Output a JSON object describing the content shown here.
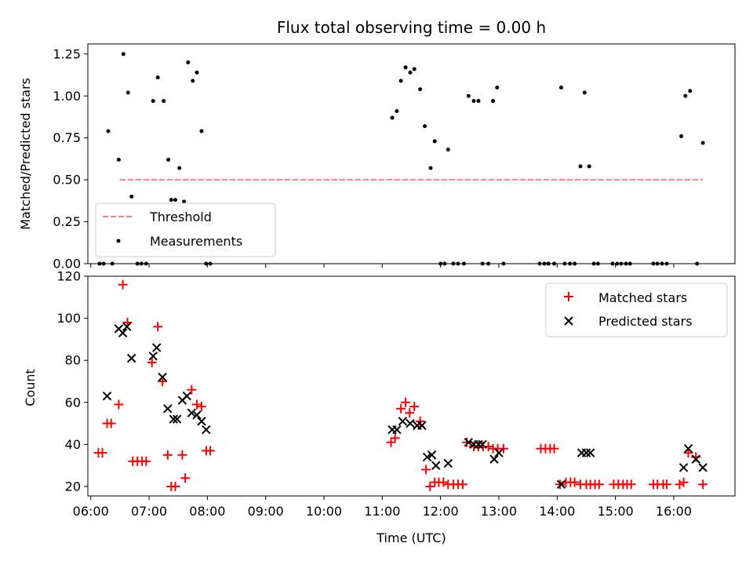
{
  "chart_data": [
    {
      "type": "scatter",
      "title": "Flux total observing time = 0.00 h",
      "xlabel": "",
      "ylabel": "Matched/Predicted stars",
      "xlim": [
        5.95,
        17.05
      ],
      "ylim": [
        0,
        1.31
      ],
      "x_ticks": [
        6,
        7,
        8,
        9,
        10,
        11,
        12,
        13,
        14,
        15,
        16
      ],
      "x_ticklabels_visible": false,
      "y_ticks": [
        0,
        0.25,
        0.5,
        0.75,
        1.0,
        1.25
      ],
      "y_ticklabels": [
        "0.00",
        "0.25",
        "0.50",
        "0.75",
        "1.00",
        "1.25"
      ],
      "legend_position": "lower-left",
      "threshold": {
        "name": "Threshold",
        "value": 0.5,
        "x_range": [
          6.5,
          16.5
        ],
        "color": "#ff7f7f",
        "style": "dashed"
      },
      "series": [
        {
          "name": "Measurements",
          "marker": "dot",
          "color": "#000000",
          "x": [
            6.15,
            6.22,
            6.3,
            6.37,
            6.48,
            6.56,
            6.64,
            6.7,
            6.8,
            6.87,
            6.95,
            7.07,
            7.15,
            7.25,
            7.33,
            7.38,
            7.45,
            7.52,
            7.6,
            7.67,
            7.75,
            7.82,
            7.9,
            7.98,
            8.05,
            11.17,
            11.25,
            11.32,
            11.4,
            11.48,
            11.55,
            11.65,
            11.73,
            11.83,
            11.9,
            12.0,
            12.07,
            12.13,
            12.22,
            12.3,
            12.4,
            12.48,
            12.57,
            12.65,
            12.72,
            12.82,
            12.9,
            12.97,
            13.08,
            13.7,
            13.78,
            13.85,
            13.95,
            14.07,
            14.13,
            14.22,
            14.3,
            14.4,
            14.47,
            14.55,
            14.63,
            14.7,
            14.95,
            15.03,
            15.1,
            15.18,
            15.25,
            15.65,
            15.72,
            15.8,
            15.88,
            16.13,
            16.2,
            16.28,
            16.4,
            16.5
          ],
          "y": [
            0,
            0,
            0.79,
            0,
            0.62,
            1.25,
            1.02,
            0.4,
            0,
            0,
            0,
            0.97,
            1.11,
            0.97,
            0.62,
            0.38,
            0.38,
            0.57,
            0.37,
            1.2,
            1.09,
            1.14,
            0.79,
            0,
            0,
            0.87,
            0.91,
            1.09,
            1.17,
            1.14,
            1.16,
            1.04,
            0.82,
            0.57,
            0.73,
            0,
            0,
            0.68,
            0,
            0,
            0,
            1.0,
            0.97,
            0.97,
            0,
            0,
            0.97,
            1.05,
            0,
            0,
            0,
            0,
            0,
            1.05,
            0,
            0,
            0,
            0.58,
            1.02,
            0.58,
            0,
            0,
            0,
            0,
            0,
            0,
            0,
            0,
            0,
            0,
            0,
            0.76,
            1.0,
            1.03,
            0,
            0.72
          ]
        }
      ]
    },
    {
      "type": "scatter",
      "title": "",
      "xlabel": "Time (UTC)",
      "ylabel": "Count",
      "xlim": [
        5.95,
        17.05
      ],
      "ylim": [
        15.5,
        120
      ],
      "x_ticks": [
        6,
        7,
        8,
        9,
        10,
        11,
        12,
        13,
        14,
        15,
        16
      ],
      "x_ticklabels": [
        "06:00",
        "07:00",
        "08:00",
        "09:00",
        "10:00",
        "11:00",
        "12:00",
        "13:00",
        "14:00",
        "15:00",
        "16:00"
      ],
      "y_ticks": [
        20,
        40,
        60,
        80,
        100,
        120
      ],
      "y_ticklabels": [
        "20",
        "40",
        "60",
        "80",
        "100",
        "120"
      ],
      "legend_position": "top-right",
      "series": [
        {
          "name": "Matched stars",
          "marker": "plus",
          "color": "#ff0000",
          "x": [
            6.13,
            6.2,
            6.28,
            6.35,
            6.48,
            6.55,
            6.63,
            6.72,
            6.8,
            6.88,
            6.95,
            7.05,
            7.15,
            7.23,
            7.32,
            7.38,
            7.45,
            7.57,
            7.62,
            7.73,
            7.82,
            7.9,
            7.98,
            8.05,
            11.15,
            11.22,
            11.32,
            11.4,
            11.47,
            11.55,
            11.65,
            11.75,
            11.82,
            11.9,
            11.97,
            12.05,
            12.13,
            12.22,
            12.3,
            12.38,
            12.45,
            12.57,
            12.65,
            12.73,
            12.82,
            12.9,
            12.98,
            13.08,
            13.72,
            13.8,
            13.88,
            13.95,
            14.05,
            14.15,
            14.23,
            14.3,
            14.4,
            14.5,
            14.57,
            14.65,
            14.72,
            14.97,
            15.05,
            15.13,
            15.2,
            15.27,
            15.65,
            15.72,
            15.82,
            15.88,
            16.1,
            16.17,
            16.25,
            16.38,
            16.5
          ],
          "y": [
            36,
            36,
            50,
            50,
            59,
            116,
            98,
            32,
            32,
            32,
            32,
            79,
            96,
            70,
            35,
            20,
            20,
            35,
            24,
            66,
            59,
            58,
            37,
            37,
            41,
            43,
            57,
            60,
            55,
            58,
            51,
            28,
            20,
            22,
            22,
            22,
            21,
            21,
            21,
            21,
            41,
            39,
            39,
            39,
            39,
            38,
            38,
            38,
            38,
            38,
            38,
            38,
            21,
            22,
            22,
            22,
            21,
            21,
            21,
            21,
            21,
            21,
            21,
            21,
            21,
            21,
            21,
            21,
            21,
            21,
            21,
            22,
            36,
            34,
            21
          ]
        },
        {
          "name": "Predicted stars",
          "marker": "x",
          "color": "#000000",
          "x": [
            6.28,
            6.48,
            6.55,
            6.62,
            6.7,
            7.07,
            7.13,
            7.23,
            7.32,
            7.42,
            7.48,
            7.57,
            7.65,
            7.73,
            7.82,
            7.9,
            7.98,
            11.17,
            11.25,
            11.35,
            11.48,
            11.6,
            11.68,
            11.77,
            11.85,
            11.92,
            12.13,
            12.48,
            12.57,
            12.65,
            12.72,
            12.92,
            13.0,
            14.07,
            14.42,
            14.5,
            14.57,
            16.17,
            16.25,
            16.38,
            16.5
          ],
          "y": [
            63,
            95,
            93,
            96,
            81,
            82,
            86,
            72,
            57,
            52,
            52,
            61,
            63,
            55,
            54,
            51,
            47,
            47,
            47,
            51,
            50,
            49,
            49,
            34,
            35,
            30,
            31,
            41,
            40,
            40,
            40,
            33,
            36,
            21,
            36,
            36,
            36,
            29,
            38,
            33,
            29
          ]
        }
      ]
    }
  ]
}
